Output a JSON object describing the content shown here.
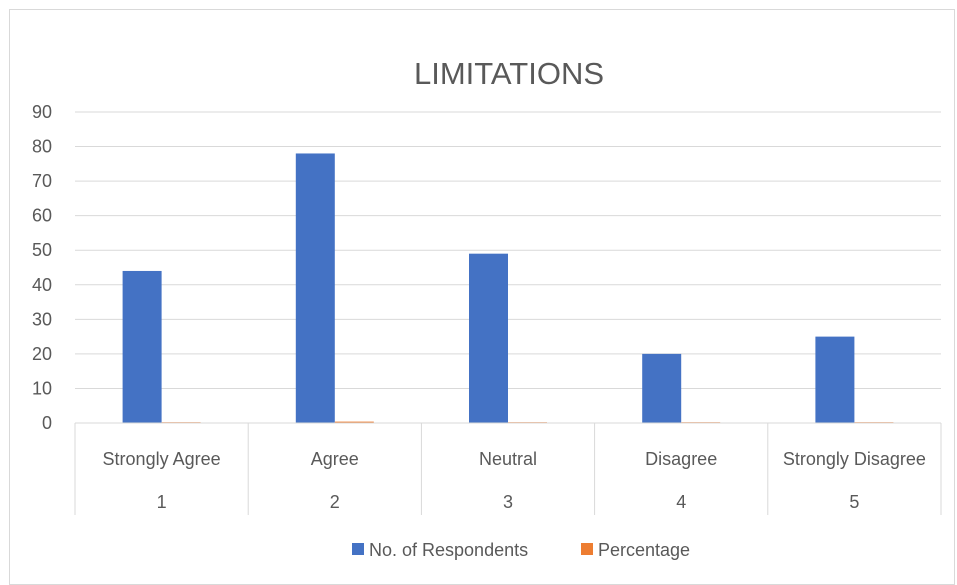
{
  "chart_data": {
    "type": "bar",
    "title": "LIMITATIONS",
    "xlabel": "",
    "ylabel": "",
    "categories": [
      {
        "label": "Strongly Agree",
        "number": "1"
      },
      {
        "label": "Agree",
        "number": "2"
      },
      {
        "label": "Neutral",
        "number": "3"
      },
      {
        "label": "Disagree",
        "number": "4"
      },
      {
        "label": "Strongly Disagree",
        "number": "5"
      }
    ],
    "series": [
      {
        "name": "No. of Respondents",
        "color": "#4472c4",
        "values": [
          44,
          78,
          49,
          20,
          25
        ]
      },
      {
        "name": "Percentage",
        "color": "#ed7d31",
        "values": [
          0.2,
          0.4,
          0.2,
          0.1,
          0.1
        ]
      }
    ],
    "ylim": [
      0,
      90
    ],
    "yticks": [
      0,
      10,
      20,
      30,
      40,
      50,
      60,
      70,
      80,
      90
    ],
    "grid": true,
    "legend_position": "bottom"
  }
}
